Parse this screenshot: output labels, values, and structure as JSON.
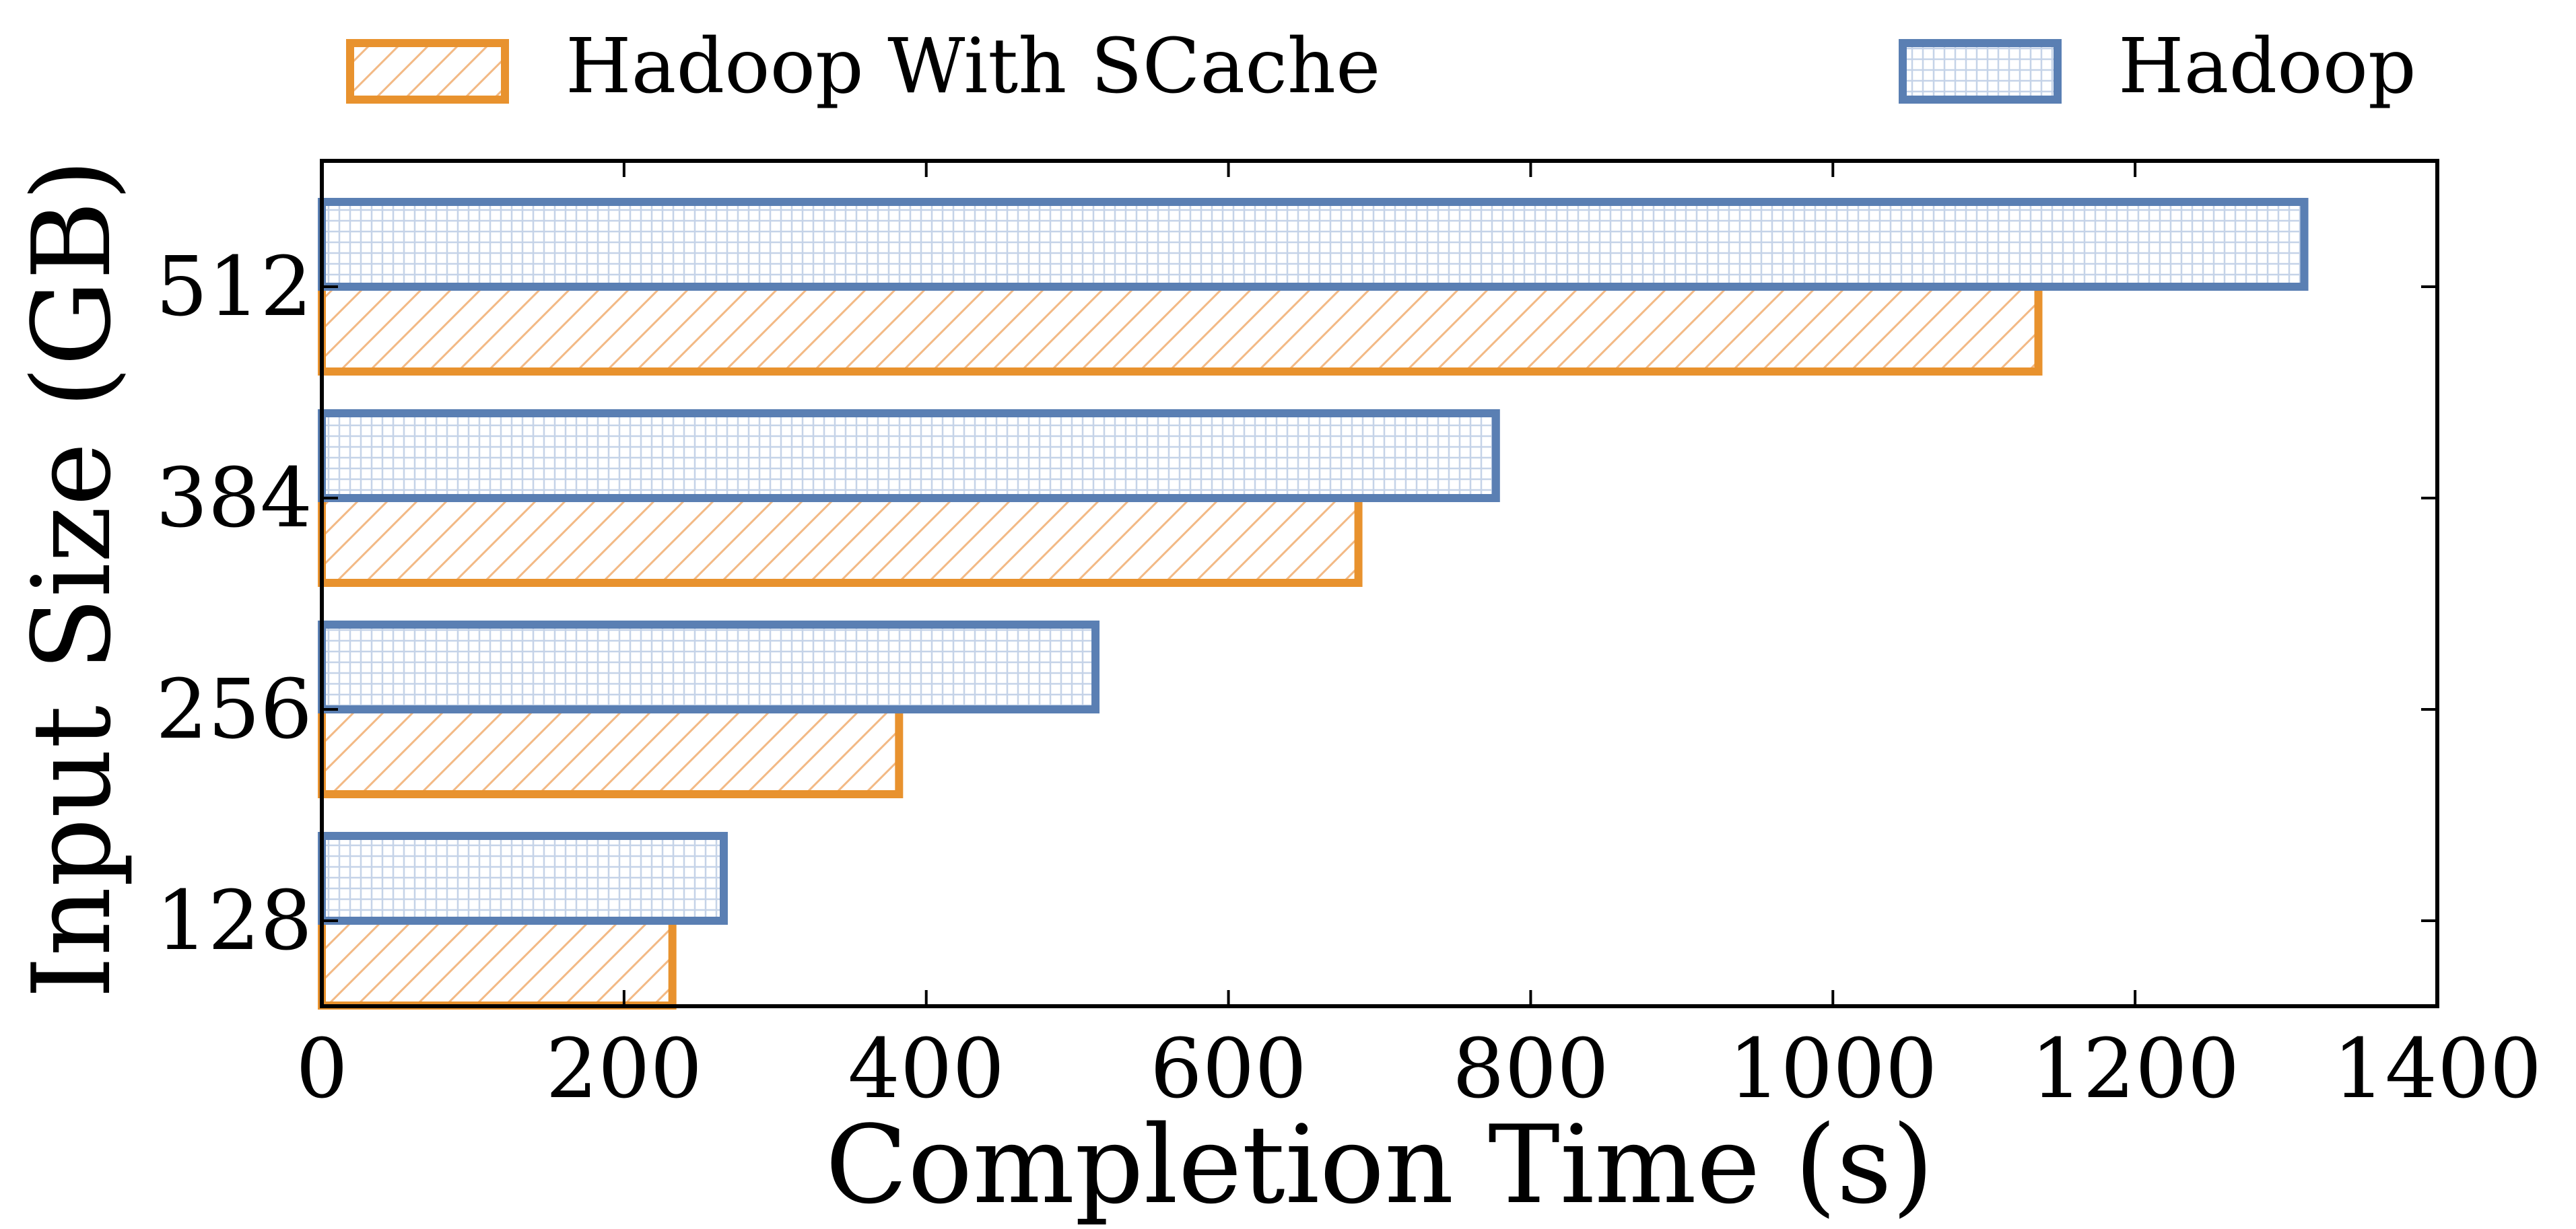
{
  "chart_data": {
    "type": "bar",
    "orientation": "horizontal",
    "xlabel": "Completion Time (s)",
    "ylabel": "Input Size (GB)",
    "categories": [
      "128",
      "256",
      "384",
      "512"
    ],
    "xlim": [
      0,
      1400
    ],
    "xticks": [
      "0",
      "200",
      "400",
      "600",
      "800",
      "1000",
      "1200",
      "1400"
    ],
    "grid": false,
    "legend_position": "top",
    "series": [
      {
        "name": "Hadoop With SCache",
        "values": [
          232,
          382,
          686,
          1136
        ],
        "color": "#e8922e",
        "pattern": "diagonal-hatch"
      },
      {
        "name": "Hadoop",
        "values": [
          266,
          512,
          777,
          1312
        ],
        "color": "#5a7fb3",
        "pattern": "grid-hatch"
      }
    ]
  }
}
